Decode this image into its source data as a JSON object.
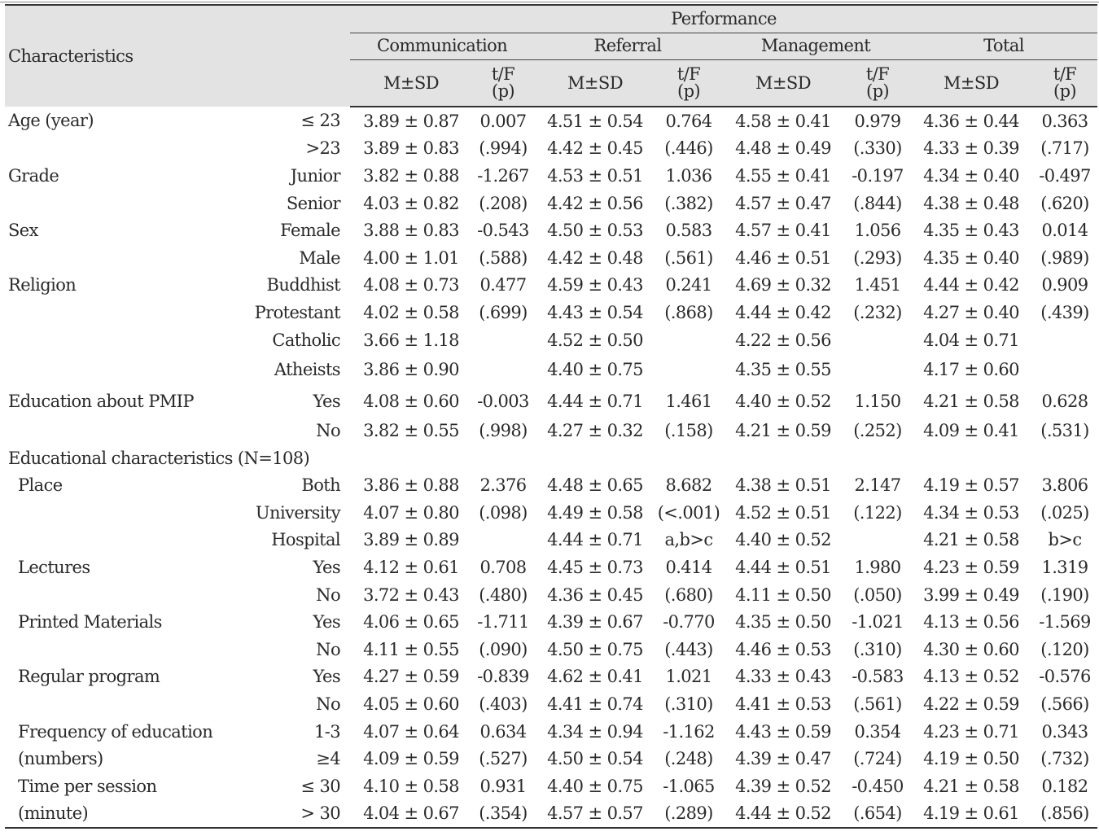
{
  "header": {
    "characteristics": "Characteristics",
    "performance": "Performance",
    "groups": [
      "Communication",
      "Referral",
      "Management",
      "Total"
    ],
    "msd": "M±SD",
    "tf": "t/F",
    "p": "(p)"
  },
  "rows": [
    {
      "label": "Age (year)",
      "sub": "≤ 23",
      "c_msd": "3.89 ± 0.87",
      "c_tf": "0.007",
      "r_msd": "4.51 ± 0.54",
      "r_tf": "0.764",
      "m_msd": "4.58 ± 0.41",
      "m_tf": "0.979",
      "t_msd": "4.36 ± 0.44",
      "t_tf": "0.363"
    },
    {
      "label": "",
      "sub": ">23",
      "c_msd": "3.89 ± 0.83",
      "c_tf": "(.994)",
      "r_msd": "4.42 ± 0.45",
      "r_tf": "(.446)",
      "m_msd": "4.48 ± 0.49",
      "m_tf": "(.330)",
      "t_msd": "4.33 ± 0.39",
      "t_tf": "(.717)"
    },
    {
      "label": "Grade",
      "sub": "Junior",
      "c_msd": "3.82 ± 0.88",
      "c_tf": "-1.267",
      "r_msd": "4.53 ± 0.51",
      "r_tf": "1.036",
      "m_msd": "4.55 ± 0.41",
      "m_tf": "-0.197",
      "t_msd": "4.34 ± 0.40",
      "t_tf": "-0.497"
    },
    {
      "label": "",
      "sub": "Senior",
      "c_msd": "4.03 ± 0.82",
      "c_tf": "(.208)",
      "r_msd": "4.42 ± 0.56",
      "r_tf": "(.382)",
      "m_msd": "4.57 ± 0.47",
      "m_tf": "(.844)",
      "t_msd": "4.38 ± 0.48",
      "t_tf": "(.620)"
    },
    {
      "label": "Sex",
      "sub": "Female",
      "c_msd": "3.88 ± 0.83",
      "c_tf": "-0.543",
      "r_msd": "4.50 ± 0.53",
      "r_tf": "0.583",
      "m_msd": "4.57 ± 0.41",
      "m_tf": "1.056",
      "t_msd": "4.35 ± 0.43",
      "t_tf": "0.014"
    },
    {
      "label": "",
      "sub": "Male",
      "c_msd": "4.00 ± 1.01",
      "c_tf": "(.588)",
      "r_msd": "4.42 ± 0.48",
      "r_tf": "(.561)",
      "m_msd": "4.46 ± 0.51",
      "m_tf": "(.293)",
      "t_msd": "4.35 ± 0.40",
      "t_tf": "(.989)"
    },
    {
      "label": "Religion",
      "sub": "Buddhist",
      "c_msd": "4.08 ± 0.73",
      "c_tf": "0.477",
      "r_msd": "4.59 ± 0.43",
      "r_tf": "0.241",
      "m_msd": "4.69 ± 0.32",
      "m_tf": "1.451",
      "t_msd": "4.44 ± 0.42",
      "t_tf": "0.909"
    },
    {
      "label": "",
      "sub": "Protestant",
      "c_msd": "4.02 ± 0.58",
      "c_tf": "(.699)",
      "r_msd": "4.43 ± 0.54",
      "r_tf": "(.868)",
      "m_msd": "4.44 ± 0.42",
      "m_tf": "(.232)",
      "t_msd": "4.27 ± 0.40",
      "t_tf": "(.439)"
    },
    {
      "label": "",
      "sub": "Catholic",
      "c_msd": "3.66 ± 1.18",
      "c_tf": "",
      "r_msd": "4.52 ± 0.50",
      "r_tf": "",
      "m_msd": "4.22 ± 0.56",
      "m_tf": "",
      "t_msd": "4.04 ± 0.71",
      "t_tf": ""
    },
    {
      "label": "",
      "sub": "Atheists",
      "c_msd": "3.86 ± 0.90",
      "c_tf": "",
      "r_msd": "4.40 ± 0.75",
      "r_tf": "",
      "m_msd": "4.35 ± 0.55",
      "m_tf": "",
      "t_msd": "4.17 ± 0.60",
      "t_tf": ""
    },
    {
      "label": "Education about PMIP",
      "sub": "Yes",
      "c_msd": "4.08 ± 0.60",
      "c_tf": "-0.003",
      "r_msd": "4.44 ± 0.71",
      "r_tf": "1.461",
      "m_msd": "4.40 ± 0.52",
      "m_tf": "1.150",
      "t_msd": "4.21 ± 0.58",
      "t_tf": "0.628"
    },
    {
      "label": "",
      "sub": "No",
      "c_msd": "3.82 ± 0.55",
      "c_tf": "(.998)",
      "r_msd": "4.27 ± 0.32",
      "r_tf": "(.158)",
      "m_msd": "4.21 ± 0.59",
      "m_tf": "(.252)",
      "t_msd": "4.09 ± 0.41",
      "t_tf": "(.531)"
    },
    {
      "label": "Educational characteristics (N=108)",
      "sub": "",
      "c_msd": "",
      "c_tf": "",
      "r_msd": "",
      "r_tf": "",
      "m_msd": "",
      "m_tf": "",
      "t_msd": "",
      "t_tf": ""
    },
    {
      "label": "Place",
      "sub": "Both",
      "c_msd": "3.86 ± 0.88",
      "c_tf": "2.376",
      "r_msd": "4.48 ± 0.65",
      "r_tf": "8.682",
      "m_msd": "4.38 ± 0.51",
      "m_tf": "2.147",
      "t_msd": "4.19 ± 0.57",
      "t_tf": "3.806"
    },
    {
      "label": "",
      "sub": "University",
      "c_msd": "4.07 ± 0.80",
      "c_tf": "(.098)",
      "r_msd": "4.49 ± 0.58",
      "r_tf": "(<.001)",
      "m_msd": "4.52 ± 0.51",
      "m_tf": "(.122)",
      "t_msd": "4.34 ± 0.53",
      "t_tf": "(.025)"
    },
    {
      "label": "",
      "sub": "Hospital",
      "c_msd": "3.89 ± 0.89",
      "c_tf": "",
      "r_msd": "4.44 ± 0.71",
      "r_tf": "a,b>c",
      "m_msd": "4.40 ± 0.52",
      "m_tf": "",
      "t_msd": "4.21 ± 0.58",
      "t_tf": "b>c"
    },
    {
      "label": "Lectures",
      "sub": "Yes",
      "c_msd": "4.12 ± 0.61",
      "c_tf": "0.708",
      "r_msd": "4.45 ± 0.73",
      "r_tf": "0.414",
      "m_msd": "4.44 ± 0.51",
      "m_tf": "1.980",
      "t_msd": "4.23 ± 0.59",
      "t_tf": "1.319"
    },
    {
      "label": "",
      "sub": "No",
      "c_msd": "3.72 ± 0.43",
      "c_tf": "(.480)",
      "r_msd": "4.36 ± 0.45",
      "r_tf": "(.680)",
      "m_msd": "4.11 ± 0.50",
      "m_tf": "(.050)",
      "t_msd": "3.99 ± 0.49",
      "t_tf": "(.190)"
    },
    {
      "label": "Printed Materials",
      "sub": "Yes",
      "c_msd": "4.06 ± 0.65",
      "c_tf": "-1.711",
      "r_msd": "4.39 ± 0.67",
      "r_tf": "-0.770",
      "m_msd": "4.35 ± 0.50",
      "m_tf": "-1.021",
      "t_msd": "4.13 ± 0.56",
      "t_tf": "-1.569"
    },
    {
      "label": "",
      "sub": "No",
      "c_msd": "4.11 ± 0.55",
      "c_tf": "(.090)",
      "r_msd": "4.50 ± 0.75",
      "r_tf": "(.443)",
      "m_msd": "4.46 ± 0.53",
      "m_tf": "(.310)",
      "t_msd": "4.30 ± 0.60",
      "t_tf": "(.120)"
    },
    {
      "label": "Regular program",
      "sub": "Yes",
      "c_msd": "4.27 ± 0.59",
      "c_tf": "-0.839",
      "r_msd": "4.62 ± 0.41",
      "r_tf": "1.021",
      "m_msd": "4.33 ± 0.43",
      "m_tf": "-0.583",
      "t_msd": "4.13 ± 0.52",
      "t_tf": "-0.576"
    },
    {
      "label": "",
      "sub": "No",
      "c_msd": "4.05 ± 0.60",
      "c_tf": "(.403)",
      "r_msd": "4.41 ± 0.74",
      "r_tf": "(.310)",
      "m_msd": "4.41 ± 0.53",
      "m_tf": "(.561)",
      "t_msd": "4.22 ± 0.59",
      "t_tf": "(.566)"
    },
    {
      "label": "Frequency of education",
      "sub": "1-3",
      "c_msd": "4.07 ± 0.64",
      "c_tf": "0.634",
      "r_msd": "4.34 ± 0.94",
      "r_tf": "-1.162",
      "m_msd": "4.43 ± 0.59",
      "m_tf": "0.354",
      "t_msd": "4.23 ± 0.71",
      "t_tf": "0.343"
    },
    {
      "label": "(numbers)",
      "sub": "≥4",
      "c_msd": "4.09 ± 0.59",
      "c_tf": "(.527)",
      "r_msd": "4.50 ± 0.54",
      "r_tf": "(.248)",
      "m_msd": "4.39 ± 0.47",
      "m_tf": "(.724)",
      "t_msd": "4.19 ± 0.50",
      "t_tf": "(.732)"
    },
    {
      "label": "Time per session",
      "sub": "≤ 30",
      "c_msd": "4.10 ± 0.58",
      "c_tf": "0.931",
      "r_msd": "4.40 ± 0.75",
      "r_tf": "-1.065",
      "m_msd": "4.39 ± 0.52",
      "m_tf": "-0.450",
      "t_msd": "4.21 ± 0.58",
      "t_tf": "0.182"
    },
    {
      "label": "(minute)",
      "sub": "> 30",
      "c_msd": "4.04 ± 0.67",
      "c_tf": "(.354)",
      "r_msd": "4.57 ± 0.57",
      "r_tf": "(.289)",
      "m_msd": "4.44 ± 0.52",
      "m_tf": "(.654)",
      "t_msd": "4.19 ± 0.61",
      "t_tf": "(.856)"
    }
  ]
}
